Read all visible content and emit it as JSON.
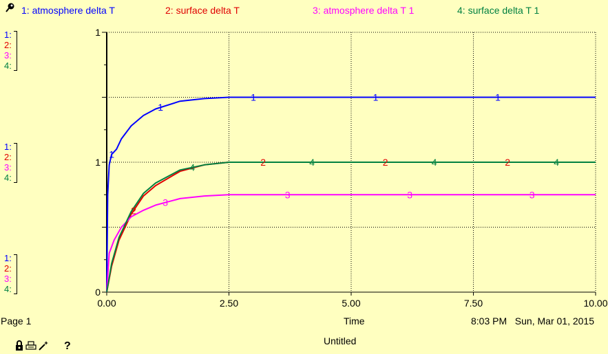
{
  "legend": [
    {
      "num": "1",
      "label": "1: atmosphere delta T",
      "color": "#0000FF",
      "icon": "pin-icon"
    },
    {
      "num": "2",
      "label": "2: surface delta T",
      "color": "#E00000"
    },
    {
      "num": "3",
      "label": "3: atmosphere delta T 1",
      "color": "#FF00FF"
    },
    {
      "num": "4",
      "label": "4: surface delta T 1",
      "color": "#008040"
    }
  ],
  "axis_keys": {
    "top": [
      "1:",
      "2:",
      "3:",
      "4:"
    ],
    "mid": [
      "1:",
      "2:",
      "3:",
      "4:"
    ],
    "bottom": [
      "1:",
      "2:",
      "3:",
      "4:"
    ]
  },
  "footer": {
    "page": "Page 1",
    "time_label": "Time",
    "timestamp": "8:03 PM   Sun, Mar 01, 2015",
    "title": "Untitled"
  },
  "toolbar": {
    "icons": [
      "lock-icon",
      "print-icon",
      "wand-icon"
    ],
    "help": "?"
  },
  "chart_data": {
    "type": "line",
    "xlabel": "Time",
    "xlim": [
      0,
      10
    ],
    "x_ticks": [
      "0.00",
      "2.50",
      "5.00",
      "7.50",
      "10.00"
    ],
    "ylim": [
      0,
      2
    ],
    "y_ticks": [
      "0",
      "1",
      "1"
    ],
    "grid": true,
    "series": [
      {
        "name": "1: atmosphere delta T",
        "label": "1",
        "color": "#0000FF",
        "x": [
          0,
          0.02,
          0.05,
          0.1,
          0.2,
          0.3,
          0.5,
          0.75,
          1.0,
          1.5,
          2.0,
          2.5,
          3.0,
          4.0,
          5.0,
          7.5,
          10.0
        ],
        "y": [
          0,
          0.75,
          0.98,
          1.06,
          1.1,
          1.18,
          1.28,
          1.36,
          1.41,
          1.47,
          1.49,
          1.5,
          1.5,
          1.5,
          1.5,
          1.5,
          1.5
        ]
      },
      {
        "name": "2: surface delta T",
        "label": "2",
        "color": "#E00000",
        "x": [
          0,
          0.1,
          0.25,
          0.5,
          0.75,
          1.0,
          1.5,
          2.0,
          2.5,
          3.0,
          4.0,
          5.0,
          7.5,
          10.0
        ],
        "y": [
          0,
          0.2,
          0.4,
          0.6,
          0.74,
          0.82,
          0.93,
          0.98,
          1.0,
          1.0,
          1.0,
          1.0,
          1.0,
          1.0
        ]
      },
      {
        "name": "3: atmosphere delta T 1",
        "label": "3",
        "color": "#FF00FF",
        "x": [
          0,
          0.05,
          0.15,
          0.3,
          0.5,
          0.75,
          1.0,
          1.5,
          2.0,
          2.5,
          3.0,
          5.0,
          7.5,
          10.0
        ],
        "y": [
          0,
          0.3,
          0.4,
          0.5,
          0.58,
          0.63,
          0.67,
          0.72,
          0.74,
          0.75,
          0.75,
          0.75,
          0.75,
          0.75
        ]
      },
      {
        "name": "4: surface delta T 1",
        "label": "4",
        "color": "#008040",
        "x": [
          0,
          0.1,
          0.25,
          0.5,
          0.75,
          1.0,
          1.5,
          2.0,
          2.5,
          3.0,
          4.0,
          5.0,
          7.5,
          10.0
        ],
        "y": [
          0,
          0.22,
          0.42,
          0.62,
          0.76,
          0.84,
          0.94,
          0.98,
          1.0,
          1.0,
          1.0,
          1.0,
          1.0,
          1.0
        ]
      }
    ]
  }
}
